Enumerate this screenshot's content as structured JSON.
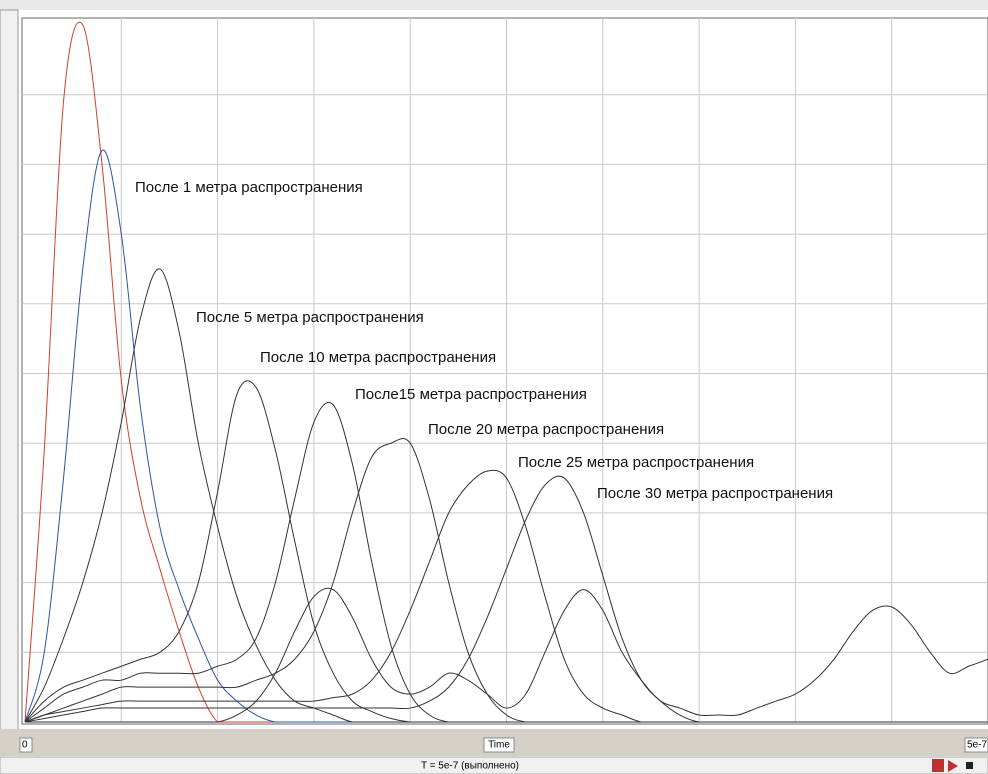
{
  "chart_data": {
    "type": "line",
    "x_label": "Time",
    "status": "T = 5e-7  (выполнено)",
    "xlim": [
      0,
      5e-07
    ],
    "ylim": [
      0,
      10
    ],
    "xticks": [
      0,
      5e-07
    ],
    "grid": true,
    "annotations": [
      "После 1 метра распространения",
      "После 5 метра распространения",
      "После 10 метра распространения",
      "После15 метра распространения",
      "После 20 метра распространения",
      "После 25 метра распространения",
      "После 30 метра распространения"
    ],
    "x": [
      0,
      1e-08,
      2e-08,
      3e-08,
      4e-08,
      5e-08,
      6e-08,
      7e-08,
      8e-08,
      9e-08,
      1e-07,
      1.1e-07,
      1.2e-07,
      1.3e-07,
      1.4e-07,
      1.5e-07,
      1.6e-07,
      1.7e-07,
      1.8e-07,
      1.9e-07,
      2e-07,
      2.1e-07,
      2.2e-07,
      2.3e-07,
      2.4e-07,
      2.5e-07,
      2.6e-07,
      2.7e-07,
      2.8e-07,
      2.9e-07,
      3e-07,
      3.1e-07,
      3.2e-07,
      3.3e-07,
      3.4e-07,
      3.5e-07,
      3.6e-07,
      3.7e-07,
      3.8e-07,
      3.9e-07,
      4e-07,
      4.1e-07,
      4.2e-07,
      4.3e-07,
      4.4e-07,
      4.5e-07,
      4.6e-07,
      4.7e-07,
      4.8e-07,
      4.9e-07,
      5e-07
    ],
    "series": [
      {
        "color": "#d0402a",
        "values": [
          0,
          3.9,
          8.9,
          10,
          8.0,
          4.9,
          3.2,
          2.2,
          1.3,
          0.5,
          0,
          0,
          0,
          0,
          0,
          0,
          0,
          0,
          0,
          0,
          0,
          0,
          0,
          0,
          0,
          0,
          0,
          0,
          0,
          0,
          0,
          0,
          0,
          0,
          0,
          0,
          0,
          0,
          0,
          0,
          0,
          0,
          0,
          0,
          0,
          0,
          0,
          0,
          0,
          0,
          0
        ]
      },
      {
        "color": "#2a55a8",
        "values": [
          0,
          1.0,
          3.5,
          6.5,
          8.2,
          7.0,
          4.5,
          2.8,
          1.9,
          1.2,
          0.6,
          0.3,
          0.1,
          0,
          0,
          0,
          0,
          0,
          0,
          0,
          0,
          0,
          0,
          0,
          0,
          0,
          0,
          0,
          0,
          0,
          0,
          0,
          0,
          0,
          0,
          0,
          0,
          0,
          0,
          0,
          0,
          0,
          0,
          0,
          0,
          0,
          0,
          0,
          0,
          0,
          0
        ]
      },
      {
        "color": "#333333",
        "values": [
          0,
          0.5,
          1.2,
          2.0,
          3.0,
          4.3,
          5.8,
          6.5,
          5.6,
          4.0,
          2.8,
          1.8,
          1.1,
          0.6,
          0.3,
          0.2,
          0.1,
          0,
          0,
          0,
          0,
          0,
          0,
          0,
          0,
          0,
          0,
          0,
          0,
          0,
          0,
          0,
          0,
          0,
          0,
          0,
          0,
          0,
          0,
          0,
          0,
          0,
          0,
          0,
          0,
          0,
          0,
          0,
          0,
          0,
          0
        ]
      },
      {
        "color": "#333333",
        "values": [
          0,
          0.3,
          0.5,
          0.6,
          0.7,
          0.8,
          0.9,
          1.0,
          1.3,
          2.0,
          3.3,
          4.7,
          4.8,
          3.9,
          2.6,
          1.4,
          0.7,
          0.3,
          0.15,
          0.05,
          0,
          0,
          0,
          0,
          0,
          0,
          0,
          0,
          0,
          0,
          0,
          0,
          0,
          0,
          0,
          0,
          0,
          0,
          0,
          0,
          0,
          0,
          0,
          0,
          0,
          0,
          0,
          0,
          0,
          0,
          0
        ]
      },
      {
        "color": "#333333",
        "values": [
          0,
          0.2,
          0.4,
          0.5,
          0.6,
          0.6,
          0.7,
          0.7,
          0.7,
          0.7,
          0.8,
          0.9,
          1.2,
          2.0,
          3.2,
          4.3,
          4.55,
          3.7,
          2.3,
          1.1,
          0.4,
          0.1,
          0,
          0,
          0,
          0,
          0,
          0,
          0,
          0,
          0,
          0,
          0,
          0,
          0,
          0,
          0,
          0,
          0,
          0,
          0,
          0,
          0,
          0,
          0,
          0,
          0,
          0,
          0,
          0,
          0
        ]
      },
      {
        "color": "#333333",
        "values": [
          0,
          0.1,
          0.2,
          0.3,
          0.4,
          0.5,
          0.5,
          0.5,
          0.5,
          0.5,
          0.5,
          0.5,
          0.6,
          0.7,
          0.9,
          1.3,
          2.0,
          3.0,
          3.8,
          4.0,
          4.0,
          3.2,
          2.0,
          1.0,
          0.4,
          0.1,
          0,
          0,
          0,
          0,
          0,
          0,
          0,
          0,
          0,
          0,
          0,
          0,
          0,
          0,
          0,
          0,
          0,
          0,
          0,
          0,
          0,
          0,
          0,
          0,
          0
        ]
      },
      {
        "color": "#333333",
        "values": [
          0,
          0.1,
          0.15,
          0.2,
          0.25,
          0.3,
          0.3,
          0.3,
          0.3,
          0.3,
          0.3,
          0.3,
          0.3,
          0.3,
          0.3,
          0.3,
          0.35,
          0.4,
          0.6,
          1.0,
          1.6,
          2.3,
          3.0,
          3.4,
          3.6,
          3.5,
          2.8,
          1.8,
          0.9,
          0.4,
          0.2,
          0.1,
          0,
          0,
          0,
          0,
          0,
          0,
          0,
          0,
          0,
          0,
          0,
          0,
          0,
          0,
          0,
          0,
          0,
          0,
          0
        ]
      },
      {
        "color": "#333333",
        "values": [
          0,
          0.05,
          0.1,
          0.15,
          0.2,
          0.2,
          0.2,
          0.2,
          0.2,
          0.2,
          0.2,
          0.2,
          0.2,
          0.2,
          0.2,
          0.2,
          0.2,
          0.2,
          0.2,
          0.2,
          0.2,
          0.3,
          0.5,
          0.9,
          1.5,
          2.2,
          2.9,
          3.4,
          3.5,
          3.0,
          2.1,
          1.2,
          0.6,
          0.3,
          0.1,
          0,
          0,
          0,
          0,
          0,
          0,
          0,
          0,
          0,
          0,
          0,
          0,
          0,
          0,
          0,
          0
        ]
      },
      {
        "color": "#333333",
        "values": [
          0,
          0,
          0,
          0,
          0,
          0,
          0,
          0,
          0,
          0,
          0,
          0.1,
          0.3,
          0.7,
          1.3,
          1.8,
          1.9,
          1.5,
          0.9,
          0.5,
          0.4,
          0.5,
          0.7,
          0.6,
          0.4,
          0.2,
          0.4,
          1.0,
          1.6,
          1.9,
          1.6,
          1.0,
          0.6,
          0.3,
          0.2,
          0.1,
          0.1,
          0.1,
          0.2,
          0.3,
          0.4,
          0.6,
          0.9,
          1.3,
          1.6,
          1.65,
          1.4,
          1.0,
          0.7,
          0.8,
          0.9
        ]
      }
    ]
  }
}
